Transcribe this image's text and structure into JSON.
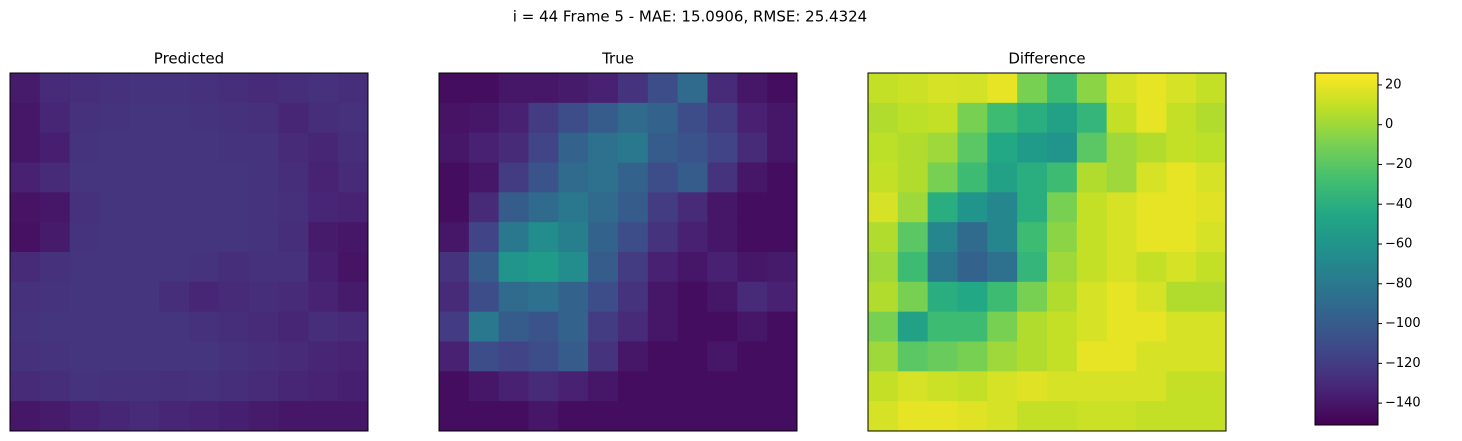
{
  "chart_data": {
    "type": "heatmap",
    "title": "i = 44 Frame 5 - MAE: 15.0906, RMSE: 25.4324",
    "colormap": "viridis",
    "clim": [
      -151,
      26
    ],
    "colorbar_ticks": [
      {
        "value": 20,
        "label": "20"
      },
      0,
      {
        "value": -20,
        "label": "−20"
      },
      {
        "value": -40,
        "label": "−40"
      },
      {
        "value": -60,
        "label": "−60"
      },
      {
        "value": -80,
        "label": "−80"
      },
      {
        "value": -100,
        "label": "−100"
      },
      {
        "value": -120,
        "label": "−120"
      },
      {
        "value": -140,
        "label": "−140"
      }
    ],
    "panels": [
      {
        "title": "Predicted",
        "values": [
          [
            -138,
            -130,
            -128,
            -126,
            -125,
            -125,
            -126,
            -128,
            -130,
            -128,
            -126,
            -128
          ],
          [
            -140,
            -132,
            -126,
            -125,
            -124,
            -124,
            -125,
            -126,
            -127,
            -132,
            -128,
            -126
          ],
          [
            -140,
            -136,
            -125,
            -124,
            -124,
            -124,
            -124,
            -125,
            -125,
            -130,
            -132,
            -128
          ],
          [
            -135,
            -130,
            -124,
            -124,
            -124,
            -124,
            -124,
            -124,
            -125,
            -128,
            -134,
            -130
          ],
          [
            -142,
            -140,
            -126,
            -124,
            -124,
            -124,
            -124,
            -124,
            -125,
            -127,
            -132,
            -134
          ],
          [
            -143,
            -138,
            -125,
            -124,
            -124,
            -124,
            -124,
            -124,
            -125,
            -128,
            -138,
            -140
          ],
          [
            -130,
            -126,
            -124,
            -124,
            -124,
            -124,
            -125,
            -128,
            -126,
            -126,
            -136,
            -142
          ],
          [
            -126,
            -125,
            -124,
            -124,
            -124,
            -128,
            -132,
            -130,
            -128,
            -130,
            -134,
            -138
          ],
          [
            -125,
            -124,
            -124,
            -124,
            -124,
            -124,
            -126,
            -128,
            -130,
            -132,
            -128,
            -130
          ],
          [
            -126,
            -125,
            -124,
            -124,
            -124,
            -124,
            -124,
            -126,
            -128,
            -130,
            -132,
            -134
          ],
          [
            -130,
            -128,
            -125,
            -126,
            -126,
            -127,
            -126,
            -128,
            -130,
            -132,
            -134,
            -136
          ],
          [
            -140,
            -138,
            -135,
            -132,
            -130,
            -132,
            -134,
            -136,
            -138,
            -140,
            -140,
            -140
          ]
        ]
      },
      {
        "title": "True",
        "values": [
          [
            -145,
            -145,
            -140,
            -140,
            -138,
            -135,
            -125,
            -110,
            -90,
            -130,
            -140,
            -145
          ],
          [
            -142,
            -140,
            -135,
            -120,
            -110,
            -100,
            -90,
            -95,
            -110,
            -120,
            -135,
            -140
          ],
          [
            -140,
            -135,
            -130,
            -115,
            -95,
            -85,
            -80,
            -100,
            -105,
            -115,
            -130,
            -140
          ],
          [
            -145,
            -140,
            -120,
            -105,
            -90,
            -85,
            -95,
            -110,
            -100,
            -125,
            -140,
            -145
          ],
          [
            -145,
            -130,
            -100,
            -90,
            -80,
            -90,
            -100,
            -120,
            -130,
            -140,
            -145,
            -145
          ],
          [
            -140,
            -115,
            -80,
            -65,
            -75,
            -95,
            -110,
            -125,
            -135,
            -140,
            -145,
            -145
          ],
          [
            -125,
            -100,
            -60,
            -55,
            -65,
            -100,
            -120,
            -135,
            -140,
            -135,
            -140,
            -138
          ],
          [
            -130,
            -110,
            -90,
            -85,
            -95,
            -110,
            -125,
            -140,
            -145,
            -140,
            -130,
            -135
          ],
          [
            -120,
            -80,
            -100,
            -105,
            -95,
            -120,
            -130,
            -140,
            -145,
            -145,
            -140,
            -145
          ],
          [
            -135,
            -110,
            -115,
            -110,
            -100,
            -125,
            -140,
            -145,
            -145,
            -140,
            -145,
            -145
          ],
          [
            -145,
            -140,
            -135,
            -130,
            -135,
            -140,
            -145,
            -145,
            -145,
            -145,
            -145,
            -145
          ],
          [
            -145,
            -145,
            -145,
            -140,
            -145,
            -145,
            -145,
            -145,
            -145,
            -145,
            -145,
            -145
          ]
        ]
      },
      {
        "title": "Difference",
        "values": [
          [
            10,
            12,
            15,
            14,
            20,
            -10,
            -30,
            -5,
            15,
            20,
            15,
            10
          ],
          [
            5,
            8,
            10,
            -10,
            -30,
            -40,
            -50,
            -35,
            10,
            20,
            10,
            5
          ],
          [
            8,
            5,
            0,
            -20,
            -45,
            -55,
            -60,
            -20,
            0,
            5,
            10,
            8
          ],
          [
            10,
            5,
            -10,
            -30,
            -50,
            -40,
            -30,
            5,
            0,
            15,
            20,
            15
          ],
          [
            15,
            0,
            -40,
            -60,
            -70,
            -40,
            -10,
            10,
            15,
            20,
            20,
            18
          ],
          [
            5,
            -20,
            -70,
            -90,
            -70,
            -30,
            -5,
            10,
            15,
            20,
            20,
            15
          ],
          [
            0,
            -30,
            -80,
            -95,
            -85,
            -35,
            0,
            10,
            15,
            10,
            15,
            10
          ],
          [
            5,
            -10,
            -40,
            -45,
            -30,
            -10,
            5,
            15,
            20,
            15,
            5,
            5
          ],
          [
            -10,
            -50,
            -30,
            -30,
            -10,
            5,
            10,
            15,
            20,
            20,
            15,
            15
          ],
          [
            0,
            -20,
            -15,
            -10,
            0,
            5,
            10,
            20,
            20,
            15,
            15,
            15
          ],
          [
            10,
            15,
            12,
            10,
            15,
            18,
            15,
            15,
            15,
            15,
            10,
            10
          ],
          [
            15,
            20,
            20,
            18,
            15,
            10,
            10,
            12,
            12,
            10,
            10,
            10
          ]
        ]
      }
    ]
  }
}
